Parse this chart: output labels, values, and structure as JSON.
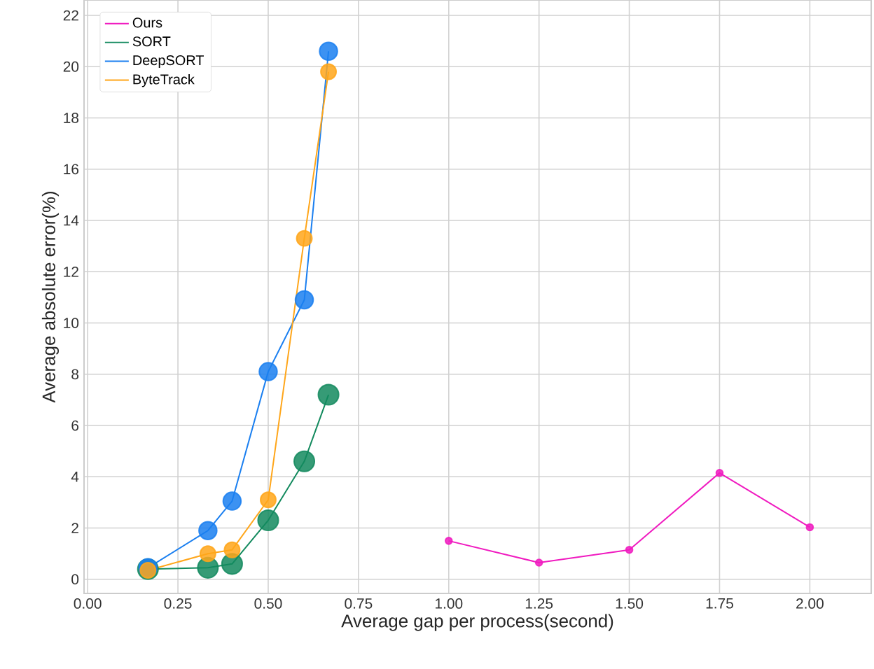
{
  "chart_data": {
    "type": "line",
    "xlabel": "Average gap per process(second)",
    "ylabel": "Average absolute error(%)",
    "xlim": [
      -0.01,
      2.17
    ],
    "ylim": [
      -0.55,
      22.6
    ],
    "xticks": [
      {
        "value": 0,
        "label": "0.00"
      },
      {
        "value": 0.25,
        "label": "0.25"
      },
      {
        "value": 0.5,
        "label": "0.50"
      },
      {
        "value": 0.75,
        "label": "0.75"
      },
      {
        "value": 1,
        "label": "1.00"
      },
      {
        "value": 1.25,
        "label": "1.25"
      },
      {
        "value": 1.5,
        "label": "1.50"
      },
      {
        "value": 1.75,
        "label": "1.75"
      },
      {
        "value": 2,
        "label": "2.00"
      }
    ],
    "yticks": [
      0,
      2,
      4,
      6,
      8,
      10,
      12,
      14,
      16,
      18,
      20,
      22
    ],
    "grid": true,
    "legend": "top left",
    "marker": "circle",
    "series": [
      {
        "name": "Ours",
        "color": "#f01bc0",
        "x": [
          1.0,
          1.25,
          1.5,
          1.75,
          2.0
        ],
        "values": [
          1.5,
          0.65,
          1.15,
          4.15,
          2.03
        ]
      },
      {
        "name": "SORT",
        "color": "#138a5e",
        "x": [
          0.167,
          0.333,
          0.4,
          0.5,
          0.6,
          0.667
        ],
        "values": [
          0.4,
          0.45,
          0.6,
          2.3,
          4.6,
          7.2
        ]
      },
      {
        "name": "DeepSORT",
        "color": "#1a7ff0",
        "x": [
          0.167,
          0.333,
          0.4,
          0.5,
          0.6,
          0.667
        ],
        "values": [
          0.45,
          1.9,
          3.05,
          8.1,
          10.9,
          20.6
        ]
      },
      {
        "name": "ByteTrack",
        "color": "#ffa61a",
        "x": [
          0.167,
          0.333,
          0.4,
          0.5,
          0.6,
          0.667
        ],
        "values": [
          0.35,
          1.0,
          1.15,
          3.1,
          13.3,
          19.8
        ]
      }
    ]
  }
}
